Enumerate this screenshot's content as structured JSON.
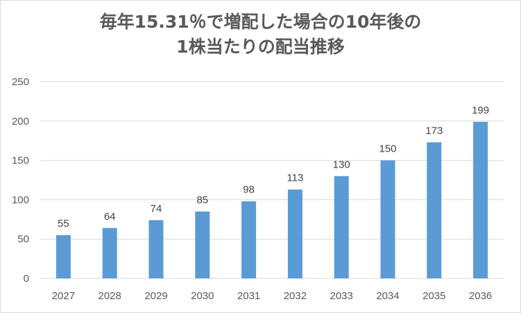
{
  "chart_data": {
    "type": "bar",
    "title_line1": "毎年15.31％で増配した場合の10年後の",
    "title_line2": "1株当たりの配当推移",
    "categories": [
      "2027",
      "2028",
      "2029",
      "2030",
      "2031",
      "2032",
      "2033",
      "2034",
      "2035",
      "2036"
    ],
    "values": [
      55,
      64,
      74,
      85,
      98,
      113,
      130,
      150,
      173,
      199
    ],
    "yticks": [
      "0",
      "50",
      "100",
      "150",
      "200",
      "250"
    ],
    "ylim": [
      0,
      250
    ],
    "grid": true,
    "legend": "none",
    "bar_color": "#5b9bd5",
    "grid_color": "#d9d9d9"
  }
}
